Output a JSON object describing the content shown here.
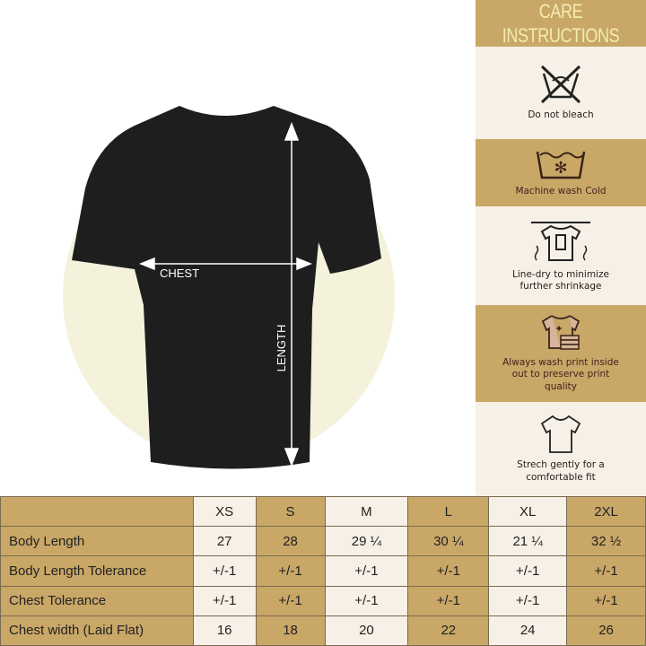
{
  "diagram": {
    "chest_label": "CHEST",
    "length_label": "LENGTH"
  },
  "care": {
    "title": "CARE INSTRUCTIONS",
    "items": [
      {
        "icon": "no-bleach-icon",
        "text": "Do not bleach"
      },
      {
        "icon": "wash-cold-icon",
        "text": "Machine wash Cold"
      },
      {
        "icon": "line-dry-icon",
        "text": "Line-dry to minimize further shrinkage"
      },
      {
        "icon": "inside-out-icon",
        "text": "Always wash print inside out to preserve print quality"
      },
      {
        "icon": "tshirt-outline-icon",
        "text": "Strech gently for a comfortable fit"
      }
    ]
  },
  "size_table": {
    "sizes": [
      "XS",
      "S",
      "M",
      "L",
      "XL",
      "2XL"
    ],
    "rows": [
      {
        "label": "Body Length",
        "values": [
          "27",
          "28",
          "29 ¼",
          "30 ¼",
          "21 ¼",
          "32 ½"
        ]
      },
      {
        "label": "Body Length Tolerance",
        "values": [
          "+/-1",
          "+/-1",
          "+/-1",
          "+/-1",
          "+/-1",
          "+/-1"
        ]
      },
      {
        "label": "Chest Tolerance",
        "values": [
          "+/-1",
          "+/-1",
          "+/-1",
          "+/-1",
          "+/-1",
          "+/-1"
        ]
      },
      {
        "label": "Chest width (Laid Flat)",
        "values": [
          "16",
          "18",
          "20",
          "22",
          "24",
          "26"
        ]
      }
    ]
  },
  "colors": {
    "gold": "#c9a767",
    "cream": "#f6f0e6",
    "shirt": "#1e1e1e"
  }
}
